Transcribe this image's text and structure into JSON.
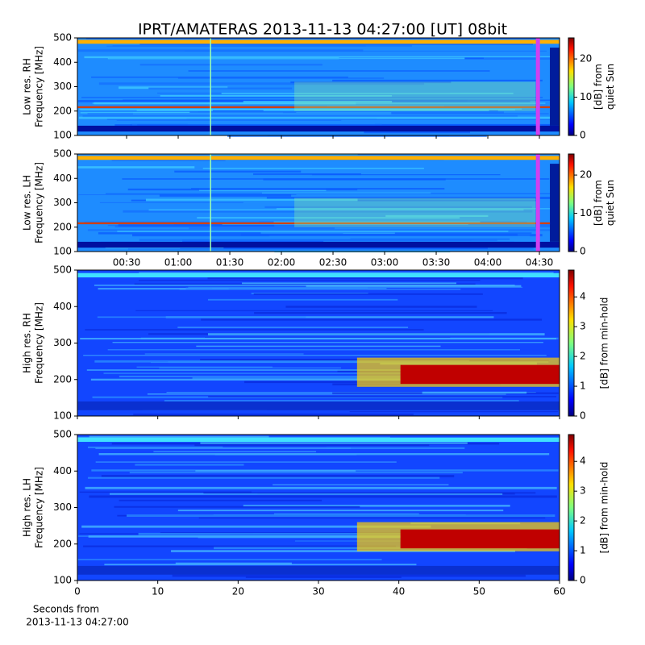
{
  "title": "IPRT/AMATERAS 2013-11-13 04:27:00 [UT]   08bit",
  "xlabel": [
    "Seconds from",
    "2013-11-13 04:27:00"
  ],
  "chart_data": [
    {
      "type": "heatmap",
      "ylabel": [
        "Low res. RH",
        "Frequency [MHz]"
      ],
      "ylim": [
        100,
        500
      ],
      "yticks": [
        100,
        200,
        300,
        400,
        500
      ],
      "xlim": [
        1.4,
        281.7
      ],
      "xticks": [
        30,
        60,
        90,
        120,
        150,
        180,
        210,
        240,
        270
      ],
      "xtick_labels": false,
      "colorbar_label": [
        "[dB] from",
        "quiet Sun"
      ],
      "clim": [
        0,
        25.5
      ],
      "cticks": [
        0,
        10,
        20
      ],
      "colormap": "jet"
    },
    {
      "type": "heatmap",
      "ylabel": [
        "Low res. LH",
        "Frequency [MHz]"
      ],
      "ylim": [
        100,
        500
      ],
      "yticks": [
        100,
        200,
        300,
        400,
        500
      ],
      "xlim": [
        1.4,
        281.7
      ],
      "xticks": [
        {
          "value": 30,
          "label": "00:30"
        },
        {
          "value": 60,
          "label": "01:00"
        },
        {
          "value": 90,
          "label": "01:30"
        },
        {
          "value": 120,
          "label": "02:00"
        },
        {
          "value": 150,
          "label": "02:30"
        },
        {
          "value": 180,
          "label": "03:00"
        },
        {
          "value": 210,
          "label": "03:30"
        },
        {
          "value": 240,
          "label": "04:00"
        },
        {
          "value": 270,
          "label": "04:30"
        }
      ],
      "xtick_labels": true,
      "colorbar_label": [
        "[dB] from",
        "quiet Sun"
      ],
      "clim": [
        0,
        25.5
      ],
      "cticks": [
        0,
        10,
        20
      ],
      "colormap": "jet"
    },
    {
      "type": "heatmap",
      "ylabel": [
        "High res. RH",
        "Frequency [MHz]"
      ],
      "ylim": [
        100,
        500
      ],
      "yticks": [
        100,
        200,
        300,
        400,
        500
      ],
      "xlim": [
        0,
        60
      ],
      "xticks": [
        0,
        10,
        20,
        30,
        40,
        50,
        60
      ],
      "xtick_labels": false,
      "colorbar_label": [
        "[dB] from min-hold"
      ],
      "clim": [
        0,
        4.9
      ],
      "cticks": [
        0,
        1,
        2,
        3,
        4
      ],
      "colormap": "jet"
    },
    {
      "type": "heatmap",
      "ylabel": [
        "High res. LH",
        "Frequency [MHz]"
      ],
      "ylim": [
        100,
        500
      ],
      "yticks": [
        100,
        200,
        300,
        400,
        500
      ],
      "xlim": [
        0,
        60
      ],
      "xticks": [
        0,
        10,
        20,
        30,
        40,
        50,
        60
      ],
      "xtick_labels": true,
      "colorbar_label": [
        "[dB] from min-hold"
      ],
      "clim": [
        0,
        4.9
      ],
      "cticks": [
        0,
        1,
        2,
        3,
        4
      ],
      "colormap": "jet"
    }
  ]
}
